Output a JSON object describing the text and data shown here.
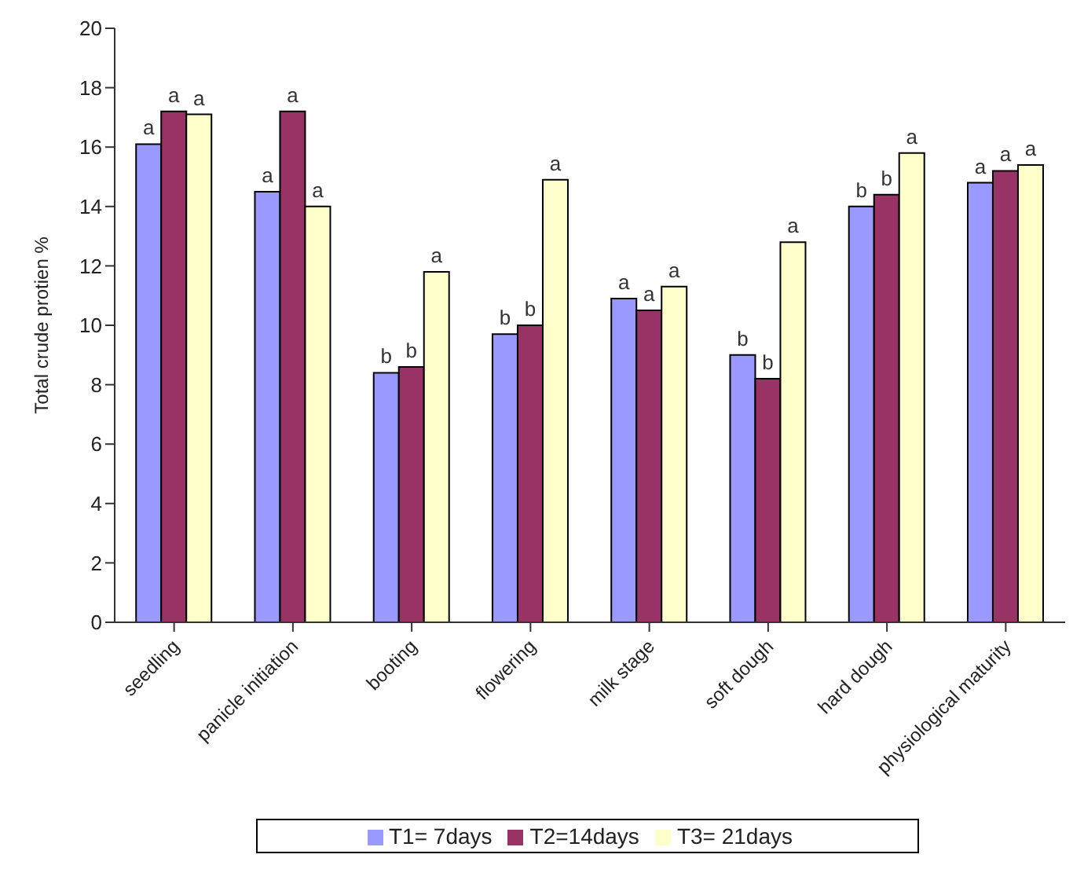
{
  "chart_data": {
    "type": "bar",
    "ylabel": "Total crude protien %",
    "categories": [
      "seedling",
      "panicle initiation",
      "booting",
      "flowering",
      "milk stage",
      "soft dough",
      "hard dough",
      "physiological maturity"
    ],
    "series": [
      {
        "name": "T1= 7days",
        "color": "#9999ff",
        "values": [
          16.1,
          14.5,
          8.4,
          9.7,
          10.9,
          9.0,
          14.0,
          14.8
        ],
        "value_labels": [
          "a",
          "a",
          "b",
          "b",
          "a",
          "b",
          "b",
          "a"
        ]
      },
      {
        "name": "T2=14days",
        "color": "#993366",
        "values": [
          17.2,
          17.2,
          8.6,
          10.0,
          10.5,
          8.2,
          14.4,
          15.2
        ],
        "value_labels": [
          "a",
          "a",
          "b",
          "b",
          "a",
          "b",
          "b",
          "a"
        ]
      },
      {
        "name": "T3= 21days",
        "color": "#ffffcc",
        "values": [
          17.1,
          14.0,
          11.8,
          14.9,
          11.3,
          12.8,
          15.8,
          15.4
        ],
        "value_labels": [
          "a",
          "a",
          "a",
          "a",
          "a",
          "a",
          "a",
          "a"
        ]
      }
    ],
    "ylim": [
      0,
      20
    ],
    "yticks": [
      0,
      2,
      4,
      6,
      8,
      10,
      12,
      14,
      16,
      18,
      20
    ],
    "grid": false,
    "legend": "bottom"
  }
}
